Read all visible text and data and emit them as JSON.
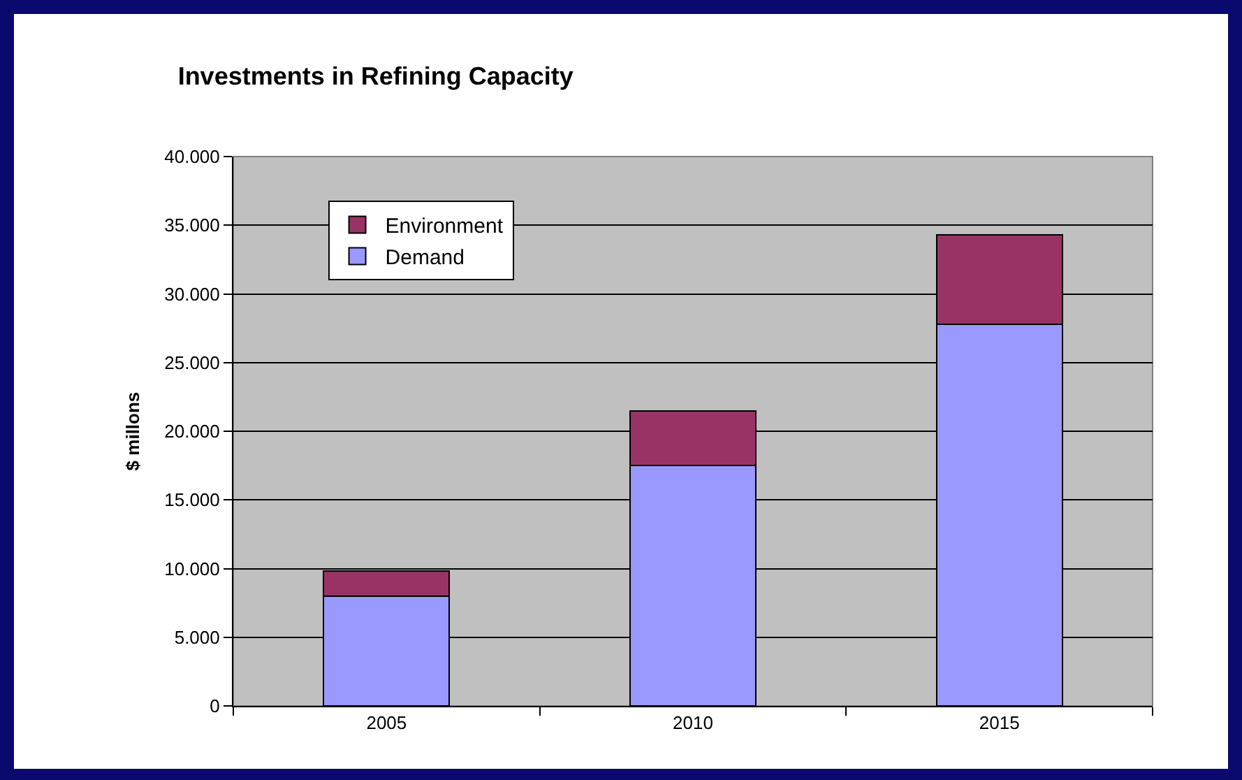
{
  "chart_data": {
    "type": "bar",
    "title": "Investments in Refining Capacity",
    "ylabel": "$ millons",
    "categories": [
      "2005",
      "2010",
      "2015"
    ],
    "stacked": true,
    "series": [
      {
        "name": "Demand",
        "color": "#9999ff",
        "values": [
          8000,
          17500,
          27800
        ]
      },
      {
        "name": "Environment",
        "color": "#993366",
        "values": [
          1800,
          4000,
          6500
        ]
      }
    ],
    "ylim": [
      0,
      40000
    ],
    "yticks": [
      0,
      {
        "value": 5000,
        "label": "5.000"
      },
      {
        "value": 10000,
        "label": "10.000"
      },
      {
        "value": 15000,
        "label": "15.000"
      },
      {
        "value": 20000,
        "label": "20.000"
      },
      {
        "value": 25000,
        "label": "25.000"
      },
      {
        "value": 30000,
        "label": "30.000"
      },
      {
        "value": 35000,
        "label": "35.000"
      },
      {
        "value": 40000,
        "label": "40.000"
      }
    ],
    "grid": "y",
    "legend": "top left"
  }
}
